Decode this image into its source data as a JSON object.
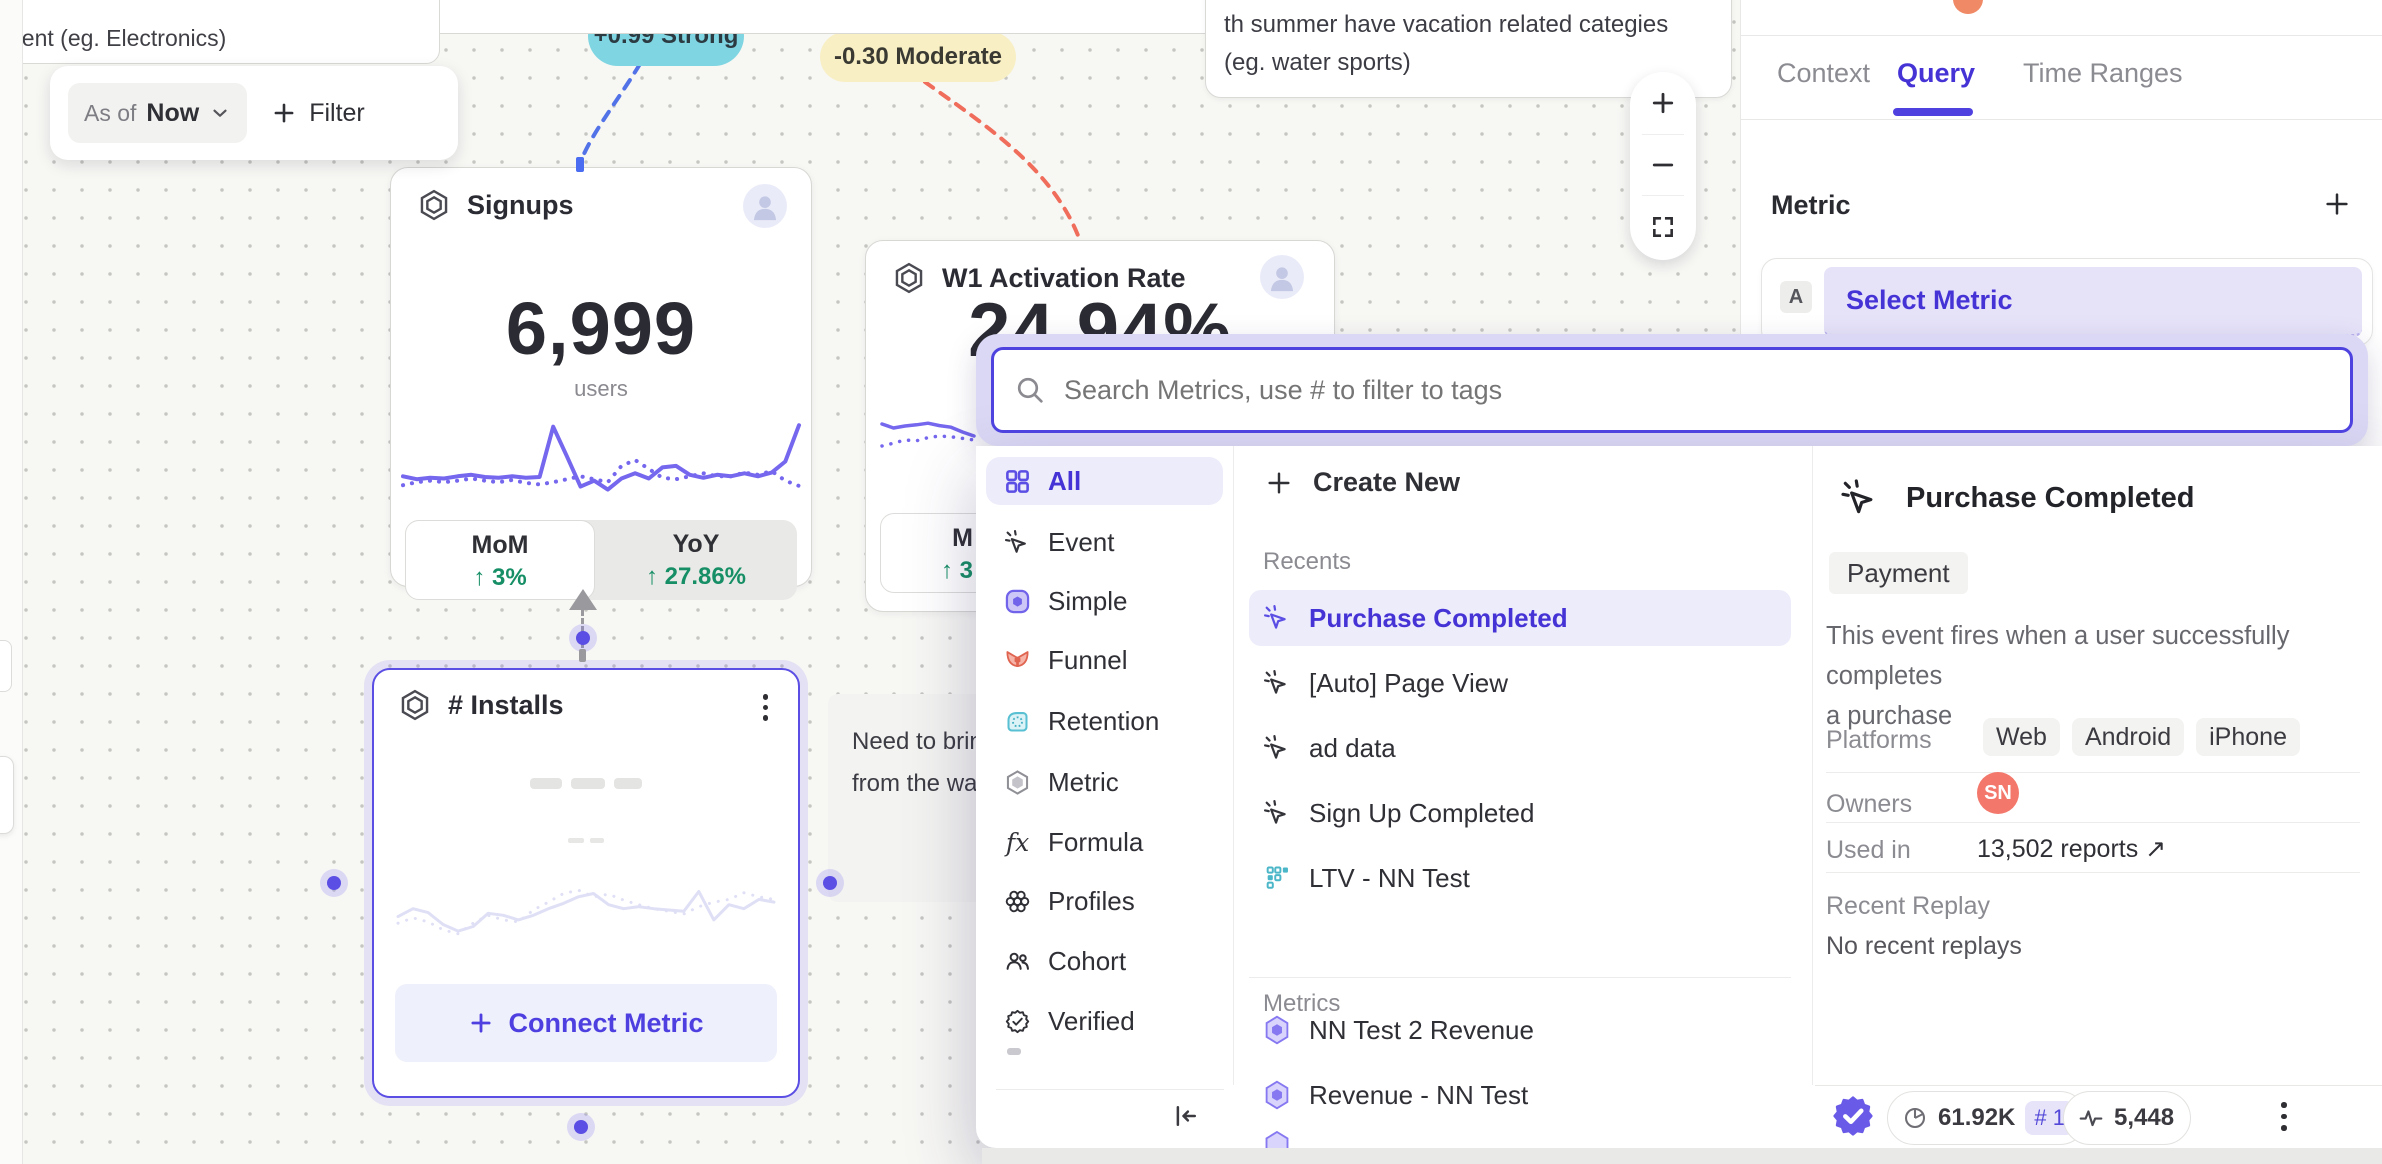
{
  "canvas": {
    "note_top_left": {
      "text": "nent  (eg. Electronics)"
    },
    "note_top_right": {
      "line1": "th summer have vacation related categies",
      "line2": "(eg. water sports)"
    },
    "note_mid": {
      "line1": "Need to brin",
      "line2": "from the wa"
    },
    "toolbar": {
      "as_of": "As of",
      "as_of_value": "Now",
      "filter": "Filter"
    },
    "badge_strong": "+0.99 Strong",
    "badge_moderate": "-0.30 Moderate",
    "cards": {
      "signups": {
        "title": "Signups",
        "value": "6,999",
        "unit": "users",
        "mom_label": "MoM",
        "mom_delta": "↑ 3%",
        "yoy_label": "YoY",
        "yoy_delta": "↑ 27.86%"
      },
      "w1": {
        "title": "W1 Activation Rate",
        "value": "24.94%",
        "mom_label": "M",
        "mom_delta": "↑ 3"
      },
      "installs": {
        "title": "# Installs",
        "connect": "Connect Metric"
      }
    }
  },
  "sidebar": {
    "tabs": [
      {
        "label": "Context"
      },
      {
        "label": "Query"
      },
      {
        "label": "Time Ranges"
      }
    ],
    "metric_title": "Metric",
    "clause_key": "A",
    "clause_value": "Select Metric",
    "footer": {
      "events_count": "61.92K",
      "rank": "# 1",
      "live_count": "5,448"
    }
  },
  "modal": {
    "search_placeholder": "Search Metrics, use # to filter to tags",
    "categories": [
      {
        "label": "All"
      },
      {
        "label": "Event"
      },
      {
        "label": "Simple"
      },
      {
        "label": "Funnel"
      },
      {
        "label": "Retention"
      },
      {
        "label": "Metric"
      },
      {
        "label": "Formula"
      },
      {
        "label": "Profiles"
      },
      {
        "label": "Cohort"
      },
      {
        "label": "Verified"
      }
    ],
    "create_new": "Create New",
    "recents_label": "Recents",
    "recents": [
      {
        "label": "Purchase Completed"
      },
      {
        "label": "[Auto] Page View"
      },
      {
        "label": "ad data"
      },
      {
        "label": "Sign Up Completed"
      },
      {
        "label": "LTV - NN Test"
      }
    ],
    "metrics_label": "Metrics",
    "metrics": [
      {
        "label": "NN Test 2 Revenue"
      },
      {
        "label": "Revenue - NN Test"
      }
    ],
    "detail": {
      "title": "Purchase Completed",
      "tag": "Payment",
      "desc_line1": "This event fires when a user successfully completes",
      "desc_line2": "a purchase",
      "platforms_label": "Platforms",
      "platforms": [
        "Web",
        "Android",
        "iPhone"
      ],
      "owners_label": "Owners",
      "owner_initials": "SN",
      "used_in_label": "Used in",
      "used_in_value": "13,502 reports ↗",
      "replay_label": "Recent Replay",
      "replay_value": "No recent replays"
    }
  },
  "chart_data": {
    "type": "sparkline",
    "signups": {
      "color": "#7567ee",
      "width": 4,
      "solid": [
        0.28,
        0.24,
        0.26,
        0.25,
        0.28,
        0.3,
        0.27,
        0.26,
        0.28,
        0.26,
        0.27,
        0.95,
        0.55,
        0.14,
        0.22,
        0.1,
        0.25,
        0.32,
        0.25,
        0.4,
        0.42,
        0.3,
        0.26,
        0.3,
        0.28,
        0.32,
        0.28,
        0.33,
        0.48,
        0.97
      ],
      "dotted": [
        0.16,
        0.2,
        0.22,
        0.2,
        0.22,
        0.25,
        0.22,
        0.2,
        0.23,
        0.19,
        0.17,
        0.2,
        0.24,
        0.28,
        0.24,
        0.2,
        0.42,
        0.5,
        0.38,
        0.26,
        0.24,
        0.28,
        0.32,
        0.28,
        0.28,
        0.33,
        0.3,
        0.35,
        0.22,
        0.15
      ]
    },
    "w1": {
      "color": "#7567ee",
      "width": 3.5,
      "solid": [
        0.8,
        0.7,
        0.75,
        0.78,
        0.82,
        0.76,
        0.72,
        0.6,
        0.5
      ],
      "dotted": [
        0.25,
        0.32,
        0.4,
        0.38,
        0.46,
        0.5,
        0.48,
        0.44,
        0.4
      ]
    },
    "installs": {
      "color": "#dfdff6",
      "width": 3,
      "solid": [
        0.4,
        0.52,
        0.46,
        0.28,
        0.18,
        0.25,
        0.45,
        0.42,
        0.35,
        0.42,
        0.52,
        0.6,
        0.7,
        0.75,
        0.58,
        0.52,
        0.55,
        0.52,
        0.5,
        0.48,
        0.78,
        0.35,
        0.58,
        0.52,
        0.66,
        0.62
      ],
      "dotted": [
        0.3,
        0.38,
        0.32,
        0.2,
        0.14,
        0.3,
        0.42,
        0.35,
        0.32,
        0.5,
        0.62,
        0.75,
        0.8,
        0.7,
        0.74,
        0.65,
        0.58,
        0.52,
        0.48,
        0.44,
        0.55,
        0.62,
        0.66,
        0.76,
        0.7,
        0.66
      ]
    }
  }
}
